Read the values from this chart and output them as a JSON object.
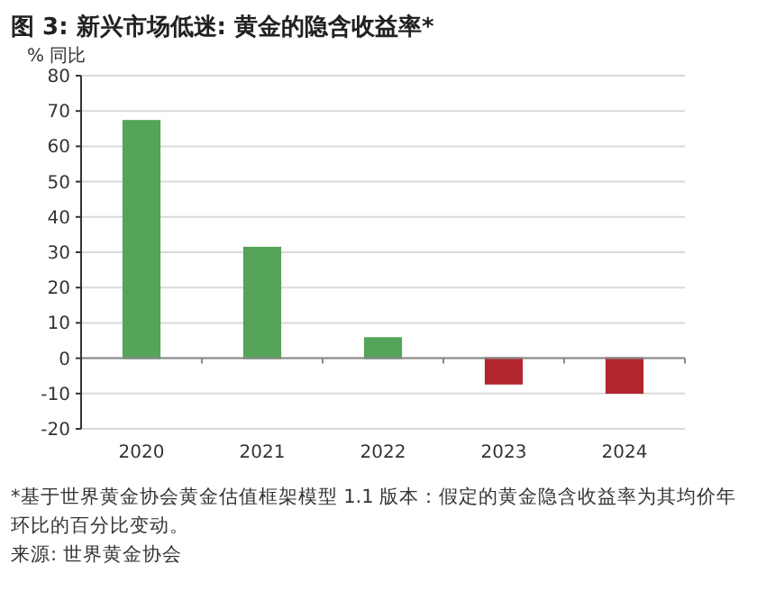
{
  "chart_data": {
    "type": "bar",
    "title": "图 3: 新兴市场低迷: 黄金的隐含收益率*",
    "ylabel": "% 同比",
    "categories": [
      "2020",
      "2021",
      "2022",
      "2023",
      "2024"
    ],
    "values": [
      67.2,
      31.3,
      5.7,
      -7.2,
      -9.8
    ],
    "colors": [
      "#56a45a",
      "#56a45a",
      "#56a45a",
      "#b3262d",
      "#b3262d"
    ],
    "ylim": [
      -20,
      80
    ],
    "yticks": [
      -20,
      -10,
      0,
      10,
      20,
      30,
      40,
      50,
      60,
      70,
      80
    ],
    "grid": "y",
    "annotations": [
      "*基于世界黄金协会黄金估值框架模型 1.1 版本：假定的黄金隐含收益率为其均价年环比的百分比变动。",
      "来源: 世界黄金协会"
    ]
  }
}
